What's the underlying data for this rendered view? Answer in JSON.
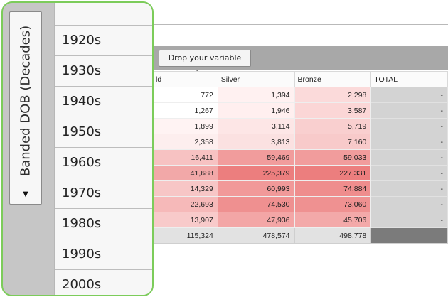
{
  "pivot": {
    "drop_placeholder": "Drop your variable here",
    "columns": [
      "ld",
      "Silver",
      "Bronze",
      "TOTAL"
    ],
    "rows": [
      {
        "gold": "772",
        "silver": "1,394",
        "bronze": "2,298",
        "total": "-",
        "shade": {
          "gold": "#ffffff",
          "silver": "#fff1f1",
          "bronze": "#fbdada"
        }
      },
      {
        "gold": "1,267",
        "silver": "1,946",
        "bronze": "3,587",
        "total": "-",
        "shade": {
          "gold": "#ffffff",
          "silver": "#ffefef",
          "bronze": "#fbd6d6"
        }
      },
      {
        "gold": "1,899",
        "silver": "3,114",
        "bronze": "5,719",
        "total": "-",
        "shade": {
          "gold": "#fff3f3",
          "silver": "#fde6e6",
          "bronze": "#f9cfcf"
        }
      },
      {
        "gold": "2,358",
        "silver": "3,813",
        "bronze": "7,160",
        "total": "-",
        "shade": {
          "gold": "#fdeeee",
          "silver": "#fbe1e1",
          "bronze": "#f8caca"
        }
      },
      {
        "gold": "16,411",
        "silver": "59,469",
        "bronze": "59,033",
        "total": "-",
        "shade": {
          "gold": "#f7c2c2",
          "silver": "#f19c9c",
          "bronze": "#f19c9c"
        }
      },
      {
        "gold": "41,688",
        "silver": "225,379",
        "bronze": "227,331",
        "total": "-",
        "shade": {
          "gold": "#f2a8a8",
          "silver": "#ec7e7e",
          "bronze": "#ec7e7e"
        }
      },
      {
        "gold": "14,329",
        "silver": "60,993",
        "bronze": "74,884",
        "total": "-",
        "shade": {
          "gold": "#f7c6c6",
          "silver": "#f19999",
          "bronze": "#ef8d8d"
        }
      },
      {
        "gold": "22,693",
        "silver": "74,530",
        "bronze": "73,060",
        "total": "-",
        "shade": {
          "gold": "#f6b9b9",
          "silver": "#ef9090",
          "bronze": "#ef9191"
        }
      },
      {
        "gold": "13,907",
        "silver": "47,936",
        "bronze": "45,706",
        "total": "-",
        "shade": {
          "gold": "#f8caca",
          "silver": "#f3a6a6",
          "bronze": "#f3a9a9"
        }
      }
    ],
    "totals": {
      "gold": "115,324",
      "silver": "478,574",
      "bronze": "498,778",
      "total": ""
    }
  },
  "field_panel": {
    "variable_name": "Banded DOB (Decades)",
    "dropdown_icon": "triangle-down-icon",
    "decades": [
      "1920s",
      "1930s",
      "1940s",
      "1950s",
      "1960s",
      "1970s",
      "1980s",
      "1990s",
      "2000s"
    ]
  },
  "colors": {
    "highlight_border": "#7ccc5a"
  }
}
